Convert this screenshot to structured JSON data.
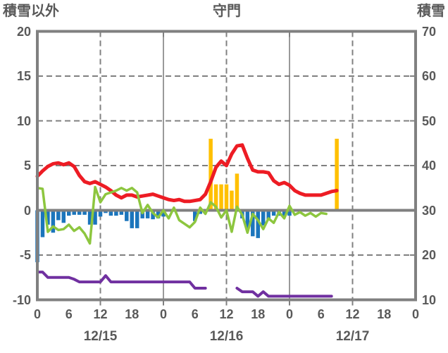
{
  "header": {
    "left_axis_title": "積雪以外",
    "title": "守門",
    "right_axis_title": "積雪"
  },
  "colors": {
    "background": "#FFFFFF",
    "frame": "#808080",
    "text": "#595959",
    "red_line": "#ED1C24",
    "green_line": "#8DC63F",
    "blue_bars": "#1B75BC",
    "orange_bars": "#FFC000",
    "purple_line": "#7030A0"
  },
  "chart_data": {
    "type": "bar+line combo, hourly time series over 3 days",
    "title": "守門",
    "x_hours_total": 72,
    "hour_tick_labels": [
      "0",
      "6",
      "12",
      "18",
      "0",
      "6",
      "12",
      "18",
      "0",
      "6",
      "12",
      "18",
      "0"
    ],
    "date_labels": [
      "12/15",
      "12/16",
      "12/17"
    ],
    "left_axis": {
      "label": "積雪以外",
      "min": -10,
      "max": 20,
      "tick_labels": [
        "20",
        "15",
        "10",
        "5",
        "0",
        "-5",
        "-10"
      ]
    },
    "right_axis": {
      "label": "積雪",
      "min": 10,
      "max": 70,
      "tick_labels": [
        "70",
        "60",
        "50",
        "40",
        "30",
        "20",
        "10"
      ]
    },
    "gridlines": {
      "horizontal_dashed_at_left_values": [
        15,
        10,
        5,
        -5
      ],
      "zero_line_at_left_value": 0,
      "vertical_solid_at_hours": [
        24,
        48
      ],
      "vertical_dashed_at_hours": [
        12,
        36,
        60
      ],
      "tick_hours": [
        12,
        24,
        36,
        48,
        60
      ]
    },
    "series": [
      {
        "name": "red-line",
        "type": "line",
        "axis": "left",
        "color_key": "red_line",
        "width": 5,
        "values": [
          3.8,
          4.4,
          4.9,
          5.2,
          5.3,
          5.1,
          5.3,
          4.9,
          3.9,
          3.2,
          3.0,
          3.2,
          2.9,
          2.6,
          2.2,
          1.7,
          1.4,
          1.7,
          1.7,
          1.5,
          1.6,
          1.7,
          1.8,
          1.6,
          1.4,
          1.2,
          1.1,
          1.2,
          1.0,
          1.0,
          1.1,
          1.2,
          1.8,
          3.2,
          4.8,
          5.5,
          5.0,
          6.3,
          7.2,
          7.3,
          5.8,
          4.5,
          4.3,
          4.3,
          4.2,
          3.3,
          2.9,
          3.1,
          2.8,
          2.2,
          1.9,
          1.7,
          1.7,
          1.7,
          1.7,
          1.9,
          2.1,
          2.2,
          null,
          null,
          null,
          null,
          null,
          null,
          null,
          null,
          null,
          null,
          null,
          null,
          null,
          null,
          null
        ]
      },
      {
        "name": "green-line",
        "type": "line",
        "axis": "left",
        "color_key": "green_line",
        "width": 3.5,
        "values": [
          2.5,
          2.4,
          -2.4,
          -1.8,
          -2.2,
          -2.1,
          -1.6,
          -2.3,
          -1.9,
          -2.6,
          -3.7,
          2.6,
          0.9,
          1.8,
          2.0,
          2.2,
          2.5,
          2.2,
          2.5,
          2.0,
          -0.3,
          0.6,
          -0.3,
          -0.8,
          0.0,
          -0.9,
          0.3,
          -1.1,
          -1.5,
          -1.9,
          -1.3,
          0.3,
          -0.4,
          0.9,
          0.4,
          -0.8,
          0.0,
          -2.4,
          0.4,
          -0.5,
          -2.5,
          -0.4,
          -1.1,
          -2.1,
          -0.9,
          -1.4,
          -0.2,
          -0.9,
          0.5,
          -0.5,
          -0.2,
          -0.6,
          -0.3,
          -0.7,
          -0.3,
          -0.4,
          null,
          null,
          null,
          null,
          null,
          null,
          null,
          null,
          null,
          null,
          null,
          null,
          null,
          null,
          null,
          null,
          null
        ]
      },
      {
        "name": "purple-snow-depth-line",
        "type": "line",
        "axis": "left",
        "color_key": "purple_line",
        "width": 4,
        "values": [
          -6.9,
          -6.9,
          -7.5,
          -7.5,
          -7.5,
          -7.5,
          -7.5,
          -7.7,
          -8.0,
          -8.0,
          -8.0,
          -8.0,
          -8.0,
          -7.3,
          -8.0,
          -8.0,
          -8.0,
          -8.0,
          -8.0,
          -8.0,
          -8.0,
          -8.0,
          -8.0,
          -8.0,
          -8.0,
          -8.0,
          -8.0,
          -8.0,
          -8.0,
          -8.0,
          -8.7,
          -8.7,
          -8.7,
          null,
          null,
          null,
          null,
          null,
          -8.7,
          -9.1,
          -9.1,
          -9.1,
          -9.6,
          -9.1,
          -9.6,
          -9.6,
          -9.6,
          -9.6,
          -9.6,
          -9.6,
          -9.6,
          -9.6,
          -9.6,
          -9.6,
          -9.6,
          -9.6,
          -9.6,
          null,
          null,
          null,
          null,
          null,
          null,
          null,
          null,
          null,
          null,
          null,
          null,
          null,
          null,
          null,
          null
        ]
      },
      {
        "name": "blue-bars",
        "type": "bar",
        "axis": "left",
        "color_key": "blue_bars",
        "values": [
          -5.8,
          -3.0,
          -1.6,
          -2.5,
          -1.1,
          -1.4,
          -0.6,
          -0.5,
          -0.5,
          -0.5,
          -1.6,
          -1.6,
          -0.7,
          -0.3,
          -0.6,
          -0.6,
          -0.5,
          -1.2,
          -2.0,
          -2.0,
          -0.9,
          -0.9,
          -1.0,
          -0.9,
          -0.7,
          0,
          0,
          0,
          0,
          0,
          -1.2,
          -0.4,
          0,
          0,
          0,
          0,
          0,
          0,
          0,
          -0.9,
          -2.1,
          -2.9,
          -3.1,
          -1.7,
          -1.1,
          -0.6,
          -0.6,
          -0.7,
          -0.6,
          0,
          0,
          0,
          0,
          0,
          0,
          0,
          0,
          0,
          0,
          0,
          0,
          0,
          0,
          0,
          0,
          0,
          0,
          0,
          0,
          0,
          0,
          0,
          0
        ]
      },
      {
        "name": "orange-bars",
        "type": "bar",
        "axis": "left",
        "color_key": "orange_bars",
        "values": [
          0,
          0,
          0,
          0,
          0,
          0,
          0,
          0,
          0,
          0,
          0,
          0,
          0,
          0,
          0,
          0,
          0,
          0,
          0,
          0,
          0,
          0,
          0,
          0,
          0,
          0,
          0,
          0,
          0,
          0,
          0,
          0,
          0,
          8.0,
          2.9,
          2.9,
          2.9,
          2.2,
          4.1,
          0,
          0,
          0,
          0,
          0,
          0,
          0,
          0,
          0,
          0,
          0,
          0,
          0,
          0,
          0,
          0,
          0,
          0,
          8.0,
          0,
          0,
          0,
          0,
          0,
          0,
          0,
          0,
          0,
          0,
          0,
          0,
          0,
          0,
          0
        ]
      }
    ]
  }
}
